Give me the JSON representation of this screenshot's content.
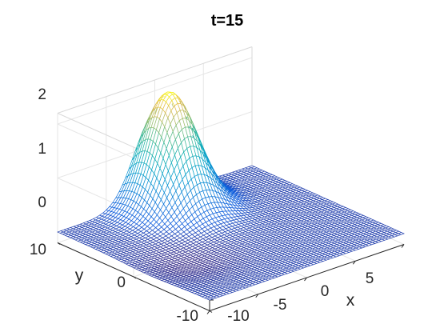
{
  "chart_data": {
    "type": "surface",
    "title": "t=15",
    "xlabel": "x",
    "ylabel": "y",
    "zlabel": "",
    "xlim": [
      -10,
      10
    ],
    "ylim": [
      -10,
      10
    ],
    "zlim": [
      -0.2,
      2.2
    ],
    "x_ticks": [
      "-10",
      "-5",
      "0",
      "5"
    ],
    "y_ticks": [
      "-10",
      "0",
      "10"
    ],
    "z_ticks": [
      "0",
      "1",
      "2"
    ],
    "grid": true,
    "colormap": "parula",
    "surface": {
      "description_note": "",
      "peak": {
        "x": 0,
        "y": 8,
        "z": 2.1
      },
      "trough": {
        "x": -6,
        "y": -2,
        "z": -0.1
      },
      "baseline_z": 0
    }
  }
}
